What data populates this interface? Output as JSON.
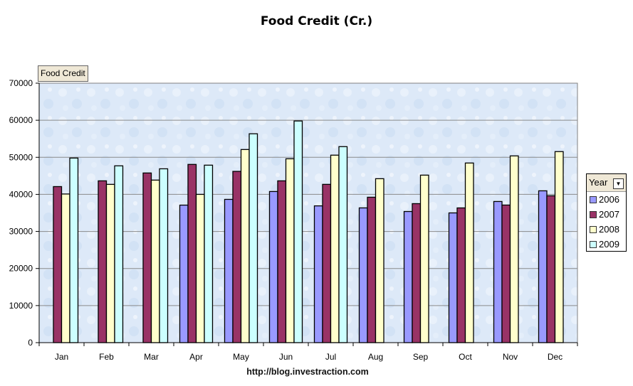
{
  "chart_data": {
    "type": "bar",
    "title": "Food Credit (Cr.)",
    "field_button": "Food Credit",
    "legend_title": "Year",
    "legend_position": "right",
    "footer": "http://blog.investraction.com",
    "categories": [
      "Jan",
      "Feb",
      "Mar",
      "Apr",
      "May",
      "Jun",
      "Jul",
      "Aug",
      "Sep",
      "Oct",
      "Nov",
      "Dec"
    ],
    "ylim": [
      0,
      70000
    ],
    "yticks": [
      "0",
      "10000",
      "20000",
      "30000",
      "40000",
      "50000",
      "60000",
      "70000"
    ],
    "grid": true,
    "series": [
      {
        "name": "2006",
        "color": "#9999FF",
        "values": [
          null,
          null,
          null,
          37100,
          38650,
          40770,
          36900,
          36350,
          35380,
          35000,
          38080,
          40960
        ]
      },
      {
        "name": "2007",
        "color": "#993366",
        "values": [
          42100,
          43650,
          45770,
          48080,
          46200,
          43650,
          42700,
          39230,
          37500,
          36350,
          37120,
          39620
        ]
      },
      {
        "name": "2008",
        "color": "#FFFFCC",
        "values": [
          40100,
          42700,
          43850,
          40000,
          52100,
          49600,
          50580,
          44230,
          45190,
          48460,
          50380,
          51540
        ]
      },
      {
        "name": "2009",
        "color": "#CCFFFF",
        "values": [
          49800,
          47700,
          46900,
          47880,
          56350,
          59800,
          52880,
          null,
          null,
          null,
          null,
          null
        ]
      }
    ]
  }
}
